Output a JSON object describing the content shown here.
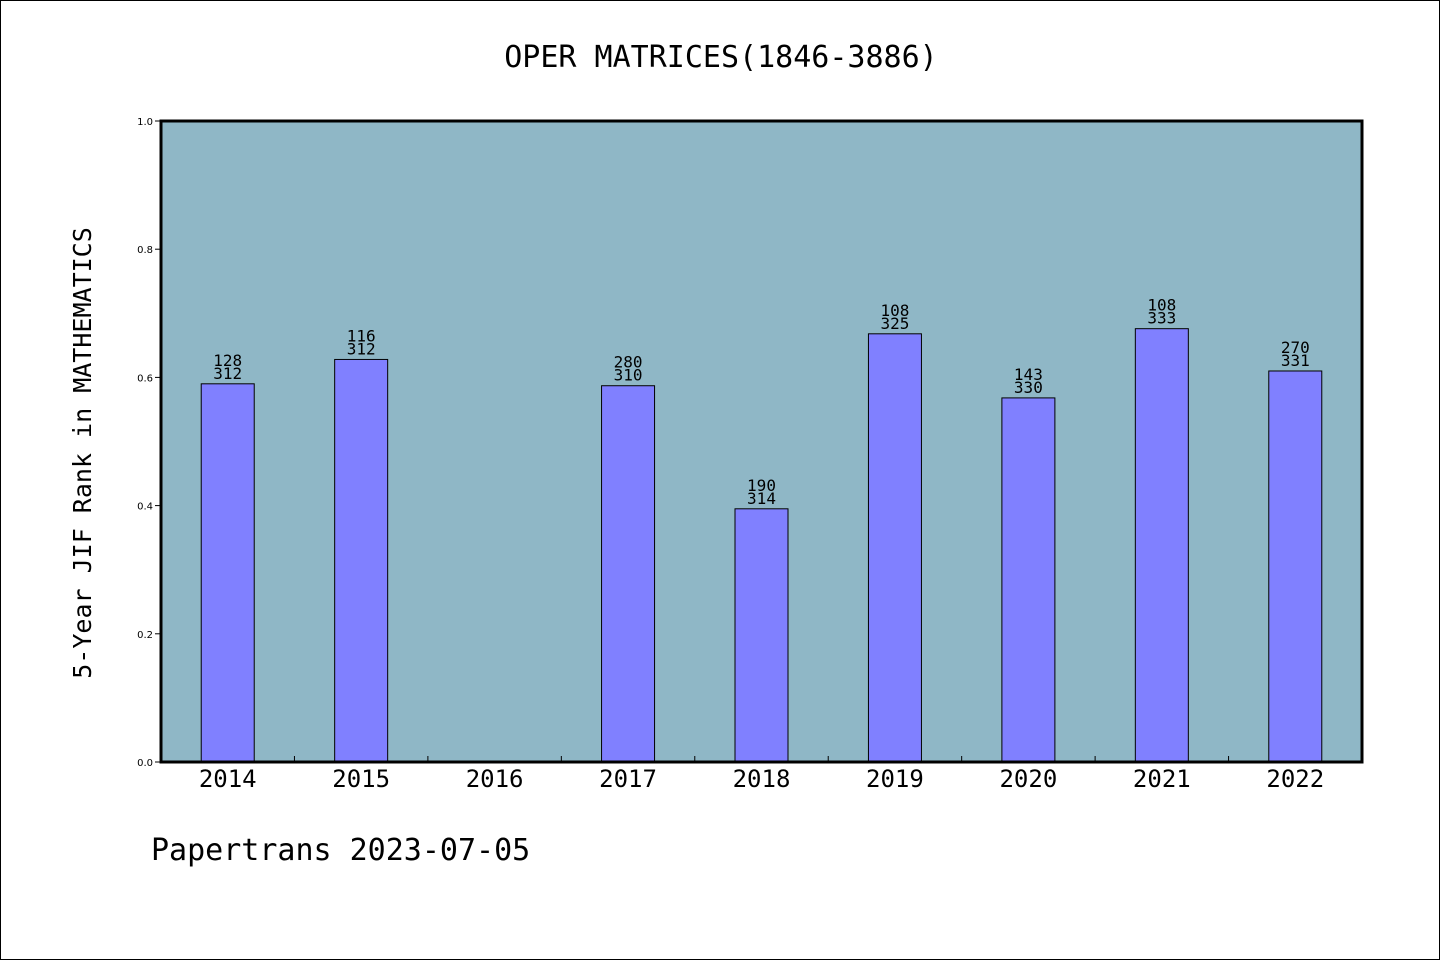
{
  "colors": {
    "plot_background": "#8fb7c6",
    "bar_fill": "#8080ff",
    "bar_stroke": "#000000",
    "text": "#000000"
  },
  "footer": {
    "source": "Papertrans",
    "date": "2023-07-05"
  },
  "chart_data": {
    "type": "bar",
    "title": "OPER MATRICES(1846-3886)",
    "xlabel": "",
    "ylabel": "5-Year JIF Rank in MATHEMATICS",
    "categories": [
      "2014",
      "2015",
      "2016",
      "2017",
      "2018",
      "2019",
      "2020",
      "2021",
      "2022"
    ],
    "values": [
      0.59,
      0.628,
      null,
      0.587,
      0.395,
      0.668,
      0.568,
      0.676,
      0.61
    ],
    "labels_top": [
      "128",
      "116",
      "",
      "280",
      "190",
      "108",
      "143",
      "108",
      "270"
    ],
    "labels_bottom": [
      "312",
      "312",
      "",
      "310",
      "314",
      "325",
      "330",
      "333",
      "331"
    ],
    "ylim": [
      0,
      1
    ],
    "yticks": [
      "0.0",
      "0.2",
      "0.4",
      "0.6",
      "0.8",
      "1.0"
    ],
    "grid": false,
    "legend": "none"
  }
}
